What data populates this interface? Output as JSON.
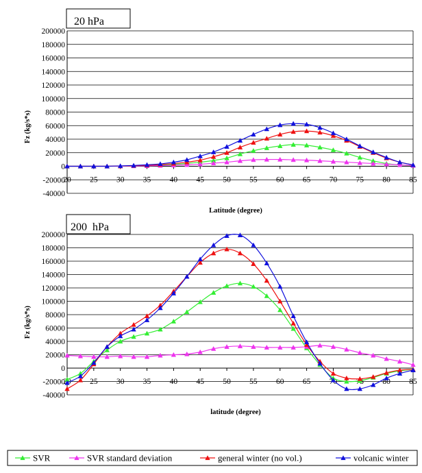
{
  "legend": [
    "SVR",
    "SVR standard deviation",
    "general winter (no vol.)",
    "volcanic winter"
  ],
  "colors": {
    "SVR": "#33ee33",
    "SVR standard deviation": "#ee33ee",
    "general winter (no vol.)": "#ee1111",
    "volcanic winter": "#1111dd"
  },
  "chart_data": [
    {
      "type": "line",
      "title": "20 hPa",
      "xlabel": "Latitude (degree)",
      "ylabel": "Fz (kg/s*s)",
      "xlim": [
        20,
        85
      ],
      "ylim": [
        -40000,
        200000
      ],
      "grid": true,
      "x_ticks": [
        20,
        25,
        30,
        35,
        40,
        45,
        50,
        55,
        60,
        65,
        70,
        75,
        80,
        85
      ],
      "y_ticks": [
        -40000,
        -20000,
        0,
        20000,
        40000,
        60000,
        80000,
        100000,
        120000,
        140000,
        160000,
        180000,
        200000
      ],
      "x": [
        20,
        22.5,
        25,
        27.5,
        30,
        32.5,
        35,
        37.5,
        40,
        42.5,
        45,
        47.5,
        50,
        52.5,
        55,
        57.5,
        60,
        62.5,
        65,
        67.5,
        70,
        72.5,
        75,
        77.5,
        80,
        82.5,
        85
      ],
      "series": [
        {
          "name": "SVR",
          "values": [
            0,
            0,
            0,
            0,
            200,
            500,
            1000,
            1800,
            2800,
            4200,
            6000,
            8500,
            12000,
            18000,
            23000,
            27000,
            30000,
            32000,
            31000,
            28000,
            24000,
            19000,
            13000,
            8000,
            4000,
            2000,
            1000
          ]
        },
        {
          "name": "SVR standard deviation",
          "values": [
            0,
            0,
            0,
            0,
            200,
            400,
            700,
            1000,
            1500,
            2200,
            3000,
            4500,
            6000,
            8000,
            9500,
            10000,
            10000,
            9500,
            9000,
            8000,
            7000,
            6000,
            5000,
            4000,
            3000,
            2000,
            1000
          ]
        },
        {
          "name": "general winter (no vol.)",
          "values": [
            0,
            0,
            0,
            0,
            300,
            800,
            1500,
            2500,
            4000,
            6000,
            9000,
            14000,
            20000,
            28000,
            35000,
            41000,
            47000,
            51000,
            52000,
            50000,
            45000,
            38000,
            29000,
            20000,
            12000,
            6000,
            2000
          ]
        },
        {
          "name": "volcanic winter",
          "values": [
            0,
            0,
            0,
            0,
            500,
            1200,
            2200,
            3500,
            6000,
            9500,
            15000,
            21000,
            29000,
            38000,
            47000,
            55000,
            61000,
            63000,
            62000,
            57000,
            49000,
            40000,
            30000,
            21000,
            13000,
            6000,
            2000
          ]
        }
      ]
    },
    {
      "type": "line",
      "title": "200  hPa",
      "xlabel": "latitude (degree)",
      "ylabel": "Fz (kg/s*s)",
      "xlim": [
        20,
        85
      ],
      "ylim": [
        -40000,
        200000
      ],
      "grid": true,
      "x_ticks": [
        20,
        25,
        30,
        35,
        40,
        45,
        50,
        55,
        60,
        65,
        70,
        75,
        80,
        85
      ],
      "y_ticks": [
        -40000,
        -20000,
        0,
        20000,
        40000,
        60000,
        80000,
        100000,
        120000,
        140000,
        160000,
        180000,
        200000
      ],
      "x": [
        20,
        22.5,
        25,
        27.5,
        30,
        32.5,
        35,
        37.5,
        40,
        42.5,
        45,
        47.5,
        50,
        52.5,
        55,
        57.5,
        60,
        62.5,
        65,
        67.5,
        70,
        72.5,
        75,
        77.5,
        80,
        82.5,
        85
      ],
      "series": [
        {
          "name": "SVR",
          "values": [
            -17000,
            -8000,
            10000,
            27000,
            40000,
            47000,
            52000,
            58000,
            70000,
            84000,
            99000,
            113000,
            123000,
            127000,
            122000,
            108000,
            87000,
            59000,
            30000,
            5000,
            -15000,
            -20000,
            -19000,
            -14000,
            -8000,
            -4000,
            -2000
          ]
        },
        {
          "name": "SVR standard deviation",
          "values": [
            19000,
            18000,
            17000,
            17000,
            18000,
            17000,
            17000,
            19000,
            20000,
            21000,
            24000,
            29000,
            32000,
            33000,
            32000,
            31000,
            31000,
            31000,
            32000,
            34000,
            32000,
            28000,
            23000,
            19000,
            14000,
            10000,
            5000
          ]
        },
        {
          "name": "general winter (no vol.)",
          "values": [
            -31000,
            -18000,
            6000,
            32000,
            52000,
            65000,
            78000,
            94000,
            115000,
            137000,
            158000,
            172000,
            178000,
            172000,
            156000,
            131000,
            100000,
            67000,
            35000,
            10000,
            -8000,
            -15000,
            -16000,
            -13000,
            -7000,
            -3000,
            -2000
          ]
        },
        {
          "name": "volcanic winter",
          "values": [
            -22000,
            -12000,
            8000,
            32000,
            48000,
            58000,
            72000,
            90000,
            112000,
            137000,
            163000,
            184000,
            198000,
            199000,
            184000,
            157000,
            122000,
            78000,
            39000,
            7000,
            -18000,
            -31000,
            -31000,
            -25000,
            -15000,
            -8000,
            -3000
          ]
        }
      ]
    }
  ]
}
